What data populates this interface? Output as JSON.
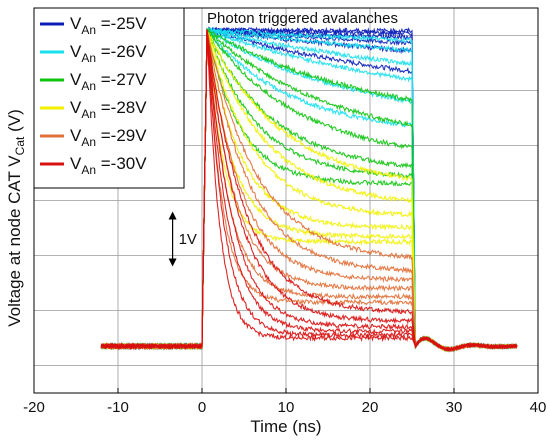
{
  "chart_data": {
    "type": "line",
    "title": "Photon triggered avalanches",
    "xlabel": "Time  (ns)",
    "ylabel": {
      "prefix": "Voltage at node CAT V",
      "sub": "Cat",
      "suffix": "  (V)"
    },
    "xlim": [
      -20,
      40
    ],
    "ylim": [
      -0.5,
      6.5
    ],
    "x_ticks": [
      -20,
      -10,
      0,
      10,
      20,
      30,
      40
    ],
    "x_tick_labels": [
      "-20",
      "-10",
      "0",
      "10",
      "20",
      "30",
      "40"
    ],
    "y_grid": [
      0,
      1,
      2,
      3,
      4,
      5,
      6
    ],
    "grid": true,
    "legend_position": "top-left",
    "scale_annotation": {
      "label": "1V",
      "x": -3.5,
      "y_from": 1.8,
      "y_to": 2.8
    },
    "pulse": {
      "trace_start": -12,
      "rise": 0,
      "fall": 25,
      "trace_end": 37.5,
      "baseline": 0.35,
      "top": 6.1
    },
    "series": [
      {
        "name_main": "V",
        "name_sub": "An",
        "name_value": " =-25V",
        "color": "#0b1fb8",
        "tau": [
          30,
          60,
          90,
          130,
          200,
          400
        ],
        "final": [
          4.75,
          4.95,
          5.1,
          5.3,
          5.55,
          5.85
        ]
      },
      {
        "name_main": "V",
        "name_sub": "An",
        "name_value": " =-26V",
        "color": "#18e0ee",
        "tau": [
          10,
          18,
          28,
          40,
          60,
          90
        ],
        "final": [
          4.2,
          4.35,
          4.55,
          4.75,
          5.0,
          5.3
        ]
      },
      {
        "name_main": "V",
        "name_sub": "An",
        "name_value": " =-27V",
        "color": "#12c412",
        "tau": [
          4,
          6,
          8,
          11,
          15,
          20
        ],
        "final": [
          3.3,
          3.4,
          3.5,
          3.7,
          3.95,
          4.3
        ]
      },
      {
        "name_main": "V",
        "name_sub": "An",
        "name_value": " =-28V",
        "color": "#f2f200",
        "tau": [
          2,
          3,
          4,
          5.5,
          7,
          9
        ],
        "final": [
          2.25,
          2.35,
          2.5,
          2.7,
          2.9,
          3.2
        ]
      },
      {
        "name_main": "V",
        "name_sub": "An",
        "name_value": " =-29V",
        "color": "#e0703a",
        "tau": [
          1.8,
          2.5,
          3.2,
          4,
          5,
          6
        ],
        "final": [
          1.15,
          1.25,
          1.4,
          1.55,
          1.7,
          1.9
        ]
      },
      {
        "name_main": "V",
        "name_sub": "An",
        "name_value": " =-30V",
        "color": "#d81010",
        "tau": [
          1.5,
          2,
          2.5,
          3,
          3.8,
          4.5
        ],
        "final": [
          0.5,
          0.55,
          0.62,
          0.7,
          0.8,
          0.95
        ]
      }
    ]
  }
}
